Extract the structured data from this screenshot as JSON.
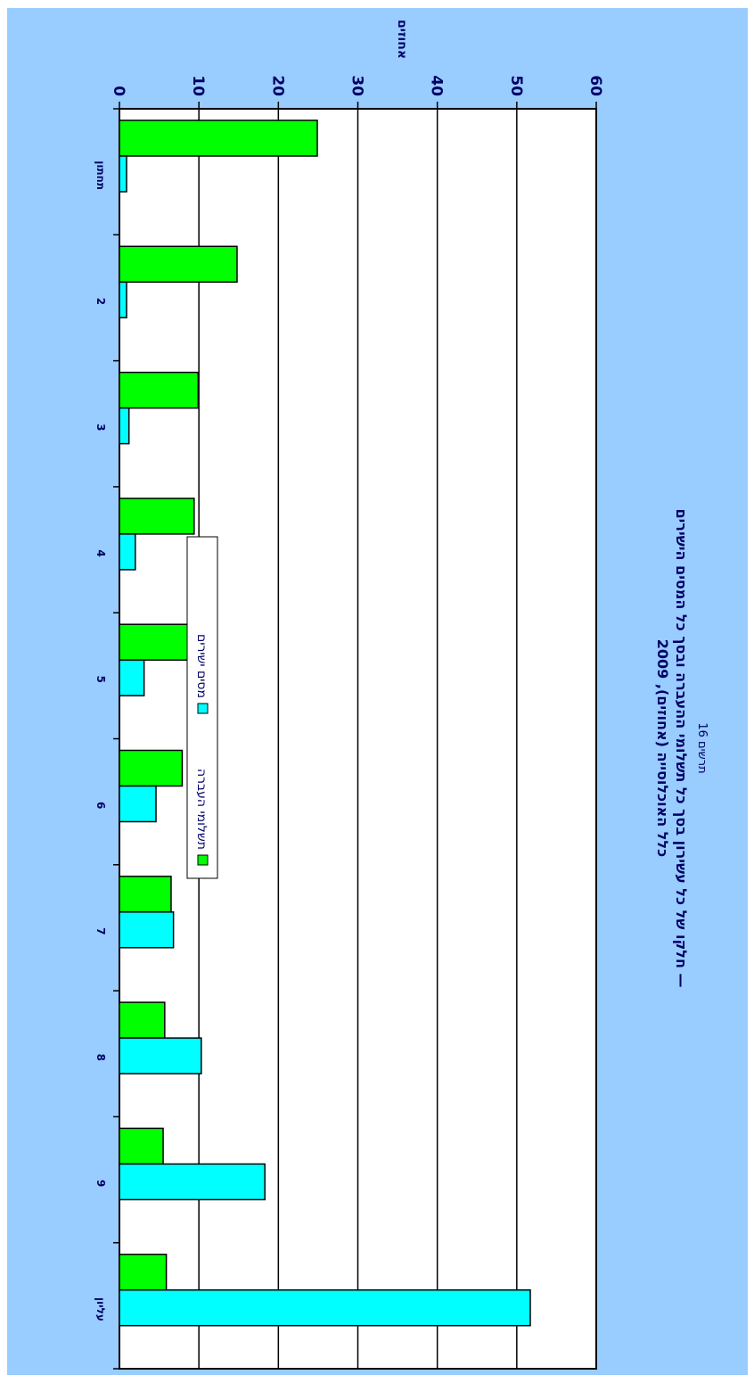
{
  "caption": "תרשים 16",
  "title_line1": "חלקו של כל עשירון בסך כל תשלומי ההעברה ובסך כל המסים הישירים —",
  "title_line2": "כלל האוכלוסייה (אחוזים), 2009",
  "colors": {
    "background": "#99ccff",
    "plot": "#ffffff",
    "transfers": "#00ff00",
    "taxes": "#00ffff",
    "text": "#000066"
  },
  "chart_data": {
    "type": "bar",
    "orientation": "horizontal",
    "categories": [
      "תחתון",
      "2",
      "3",
      "4",
      "5",
      "6",
      "7",
      "8",
      "9",
      "עליון"
    ],
    "series": [
      {
        "name": "תשלומי העברה",
        "color": "#00ff00",
        "values": [
          24.9,
          14.8,
          9.9,
          9.4,
          9.0,
          7.9,
          6.5,
          5.7,
          5.5,
          5.9
        ]
      },
      {
        "name": "מסים ישירים",
        "color": "#00ffff",
        "values": [
          0.9,
          0.9,
          1.2,
          2.0,
          3.1,
          4.6,
          6.8,
          10.3,
          18.3,
          51.7
        ]
      }
    ],
    "ylabel": "אחוזים",
    "ylim": [
      0,
      60
    ],
    "ticks": [
      0,
      10,
      20,
      30,
      40,
      50,
      60
    ],
    "grid": true,
    "legend_position": "bottom-right"
  }
}
